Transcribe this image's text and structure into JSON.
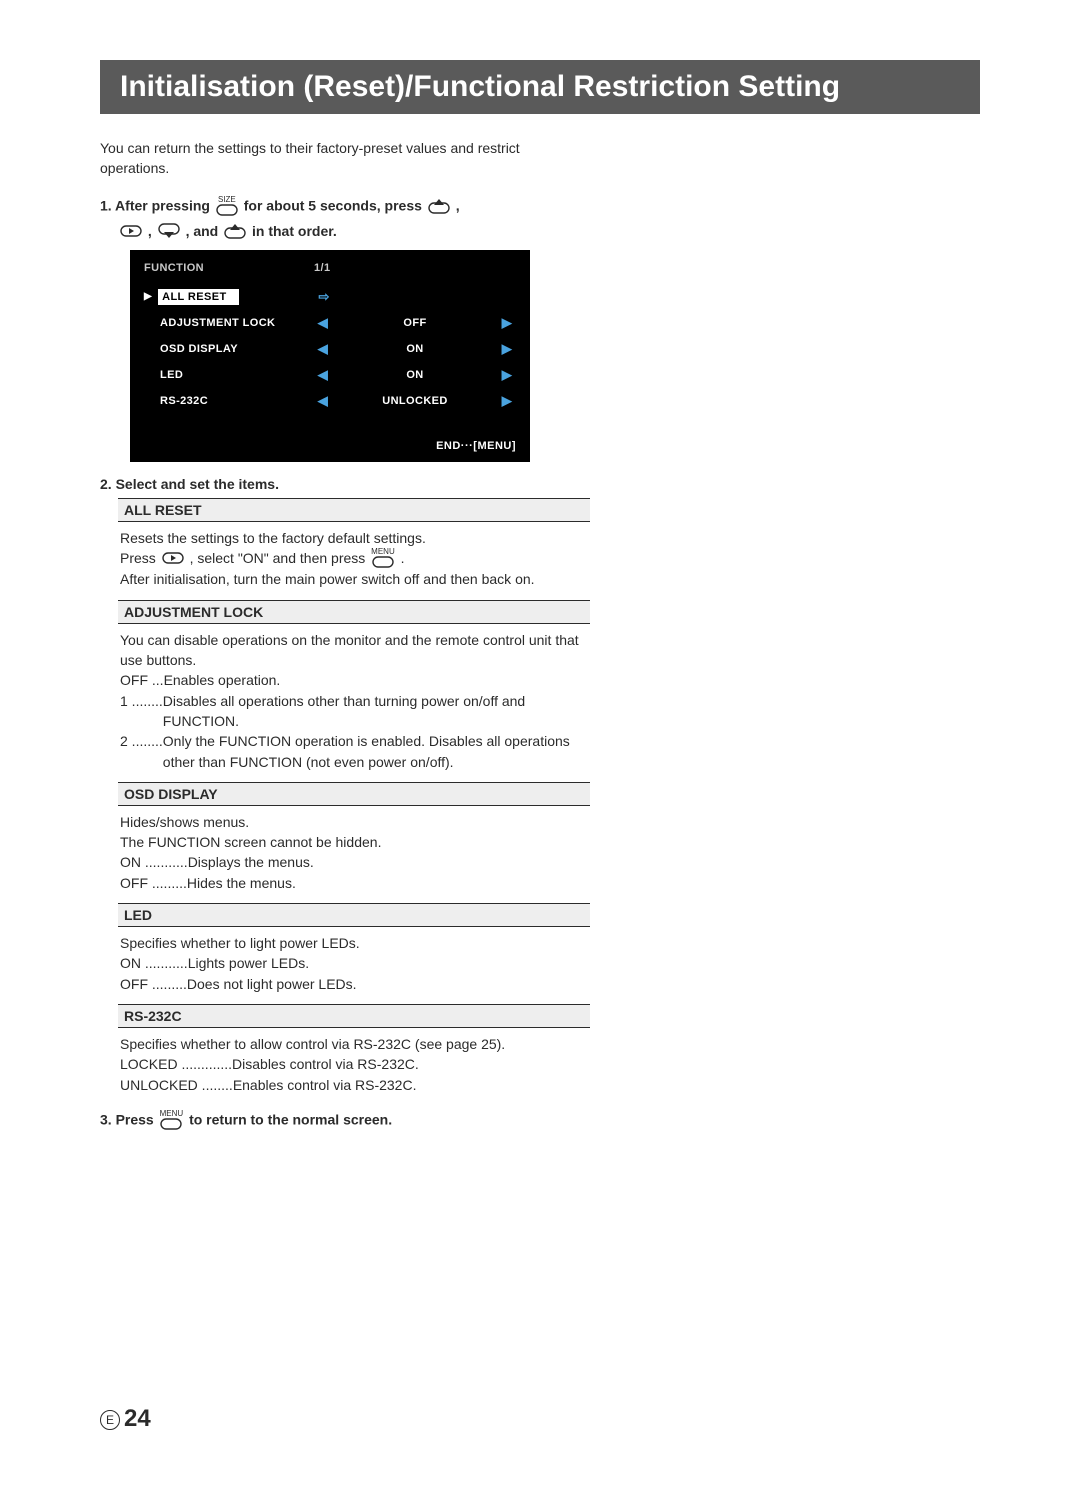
{
  "title": "Initialisation (Reset)/Functional Restriction Setting",
  "intro": "You can return the settings to their factory-preset values and restrict operations.",
  "step1": {
    "prefix": "1.  After pressing ",
    "mid1": " for about 5 seconds, press ",
    "mid2": " , ",
    "mid3": " , ",
    "mid4": " , and ",
    "suffix": " in that order."
  },
  "button_labels": {
    "size": "SIZE",
    "menu": "MENU"
  },
  "menu": {
    "header": "FUNCTION",
    "page": "1/1",
    "rows": [
      {
        "label": "ALL RESET",
        "highlighted": true,
        "value_type": "enter"
      },
      {
        "label": "ADJUSTMENT LOCK",
        "highlighted": false,
        "value_type": "arrows",
        "value": "OFF"
      },
      {
        "label": "OSD DISPLAY",
        "highlighted": false,
        "value_type": "arrows",
        "value": "ON"
      },
      {
        "label": "LED",
        "highlighted": false,
        "value_type": "arrows",
        "value": "ON"
      },
      {
        "label": "RS-232C",
        "highlighted": false,
        "value_type": "arrows",
        "value": "UNLOCKED"
      }
    ],
    "footer": "END···[MENU]"
  },
  "colors": {
    "title_bg": "#5a5a5a",
    "menu_bg": "#000000",
    "menu_arrow": "#4aa3df",
    "section_bg": "#eeeeee",
    "text": "#2b2b2b"
  },
  "step2_heading": "2.  Select and set the items.",
  "sections": [
    {
      "heading": "ALL RESET",
      "body_pre": "Resets the settings to the factory default settings.",
      "body_press_pre": "Press ",
      "body_press_mid": " , select \"ON\" and then press ",
      "body_press_post": " .",
      "body_after": "After initialisation, turn the main power switch off and then back on."
    },
    {
      "heading": "ADJUSTMENT LOCK",
      "body_intro": "You can disable operations on the monitor and the remote control unit that use buttons.",
      "options": [
        {
          "key": "OFF ...",
          "text": "Enables operation."
        },
        {
          "key": "1 ........",
          "text": "Disables all operations other than turning power on/off and FUNCTION."
        },
        {
          "key": "2 ........",
          "text": "Only the FUNCTION operation is enabled. Disables all operations other than FUNCTION (not even power on/off)."
        }
      ]
    },
    {
      "heading": "OSD DISPLAY",
      "body_intro": "Hides/shows menus.",
      "body_note": "The FUNCTION screen cannot be hidden.",
      "options": [
        {
          "key": "ON ...........",
          "text": "Displays the menus."
        },
        {
          "key": "OFF .........",
          "text": "Hides the menus."
        }
      ]
    },
    {
      "heading": "LED",
      "body_intro": "Specifies whether to light power LEDs.",
      "options": [
        {
          "key": "ON ...........",
          "text": "Lights power LEDs."
        },
        {
          "key": "OFF .........",
          "text": "Does not light power LEDs."
        }
      ]
    },
    {
      "heading": "RS-232C",
      "body_intro": "Specifies whether to allow control via RS-232C (see page 25).",
      "options": [
        {
          "key": "LOCKED .............",
          "text": "Disables control via RS-232C."
        },
        {
          "key": "UNLOCKED ........",
          "text": "Enables control via RS-232C."
        }
      ]
    }
  ],
  "step3": {
    "prefix": "3.  Press ",
    "suffix": " to return to the normal screen."
  },
  "page_number": {
    "prefix_letter": "E",
    "number": "24"
  }
}
